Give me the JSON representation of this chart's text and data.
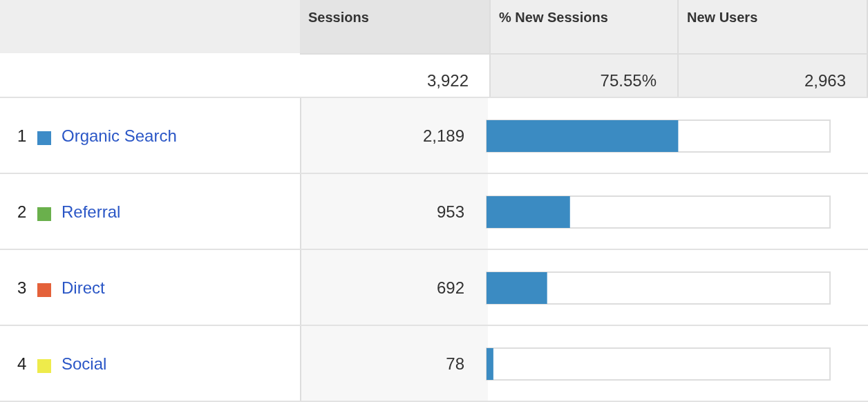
{
  "chart_data": {
    "type": "bar",
    "orientation": "horizontal",
    "categories": [
      "Organic Search",
      "Referral",
      "Direct",
      "Social"
    ],
    "values": [
      2189,
      953,
      692,
      78
    ],
    "value_labels": [
      "2,189",
      "953",
      "692",
      "78"
    ],
    "color": "#3b8bc2",
    "xlim": [
      0,
      3922
    ],
    "annotations": [
      "Sessions",
      "% New Sessions",
      "New Users",
      "3,922",
      "75.55%",
      "2,963",
      "1",
      "2",
      "3",
      "4"
    ]
  }
}
